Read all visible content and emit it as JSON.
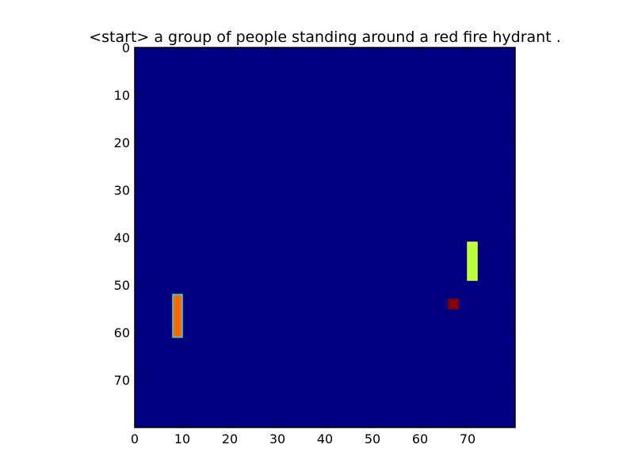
{
  "chart_data": {
    "type": "heatmap",
    "title": "<start> a group of people standing around a red fire hydrant .",
    "xlabel": "",
    "ylabel": "",
    "grid_size": [
      80,
      80
    ],
    "xlim": [
      0,
      80
    ],
    "ylim": [
      80,
      0
    ],
    "x_ticks": [
      0,
      10,
      20,
      30,
      40,
      50,
      60,
      70
    ],
    "y_ticks": [
      0,
      10,
      20,
      30,
      40,
      50,
      60,
      70
    ],
    "colormap": "jet",
    "background_value": 0.0,
    "background_color": "#000080",
    "grid": false,
    "highlights": [
      {
        "name": "left-bar",
        "x": [
          8,
          9
        ],
        "y": [
          52,
          60
        ],
        "value": 0.78,
        "color": "#ff6a00",
        "edge_color": "#19e5e5"
      },
      {
        "name": "right-bar",
        "x": [
          70,
          71
        ],
        "y": [
          41,
          48
        ],
        "value": 0.62,
        "color": "#b8ff3c",
        "edge_color": "#d9ff34"
      },
      {
        "name": "dot",
        "x": [
          66,
          67
        ],
        "y": [
          53,
          54
        ],
        "value": 0.95,
        "color": "#8c0000",
        "edge_color": "#7f0000"
      }
    ]
  }
}
